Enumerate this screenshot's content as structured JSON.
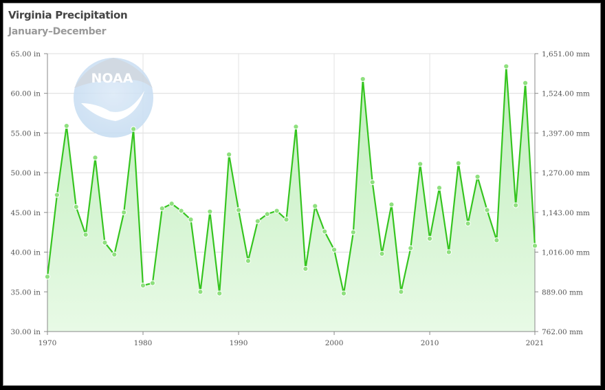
{
  "title": "Virginia Precipitation",
  "subtitle": "January–December",
  "logo_text": "NOAA",
  "colors": {
    "line": "#35c41f",
    "area_top": "#bfeebb",
    "area_bottom": "#e8fae6",
    "marker": "#8fe07f"
  },
  "chart_data": {
    "type": "area",
    "title": "Virginia Precipitation",
    "subtitle": "January–December",
    "xlabel": "",
    "ylabel": "",
    "xlim": [
      1970,
      2021
    ],
    "ylim": [
      30,
      65
    ],
    "y2lim": [
      762,
      1651
    ],
    "x_ticks": [
      "1970",
      "1980",
      "1990",
      "2000",
      "2010",
      "2021"
    ],
    "y_ticks": [
      "30.00 in",
      "35.00 in",
      "40.00 in",
      "45.00 in",
      "50.00 in",
      "55.00 in",
      "60.00 in",
      "65.00 in"
    ],
    "y2_ticks": [
      "762.00 mm",
      "889.00 mm",
      "1,016.00 mm",
      "1,143.00 mm",
      "1,270.00 mm",
      "1,397.00 mm",
      "1,524.00 mm",
      "1,651.00 mm"
    ],
    "grid": true,
    "x": [
      1970,
      1971,
      1972,
      1973,
      1974,
      1975,
      1976,
      1977,
      1978,
      1979,
      1980,
      1981,
      1982,
      1983,
      1984,
      1985,
      1986,
      1987,
      1988,
      1989,
      1990,
      1991,
      1992,
      1993,
      1994,
      1995,
      1996,
      1997,
      1998,
      1999,
      2000,
      2001,
      2002,
      2003,
      2004,
      2005,
      2006,
      2007,
      2008,
      2009,
      2010,
      2011,
      2012,
      2013,
      2014,
      2015,
      2016,
      2017,
      2018,
      2019,
      2020,
      2021
    ],
    "values": [
      36.9,
      47.2,
      55.9,
      45.7,
      42.2,
      51.9,
      41.2,
      39.7,
      45.0,
      55.5,
      35.8,
      36.1,
      45.5,
      46.1,
      45.2,
      44.1,
      35.0,
      45.1,
      34.8,
      52.3,
      45.3,
      38.9,
      43.9,
      44.8,
      45.2,
      44.1,
      55.8,
      37.9,
      45.8,
      42.6,
      40.3,
      34.8,
      42.5,
      61.8,
      48.8,
      39.8,
      46.0,
      35.0,
      40.5,
      51.1,
      41.7,
      48.1,
      40.0,
      51.2,
      43.6,
      49.5,
      45.3,
      41.5,
      63.4,
      45.9,
      61.3,
      40.8
    ]
  }
}
